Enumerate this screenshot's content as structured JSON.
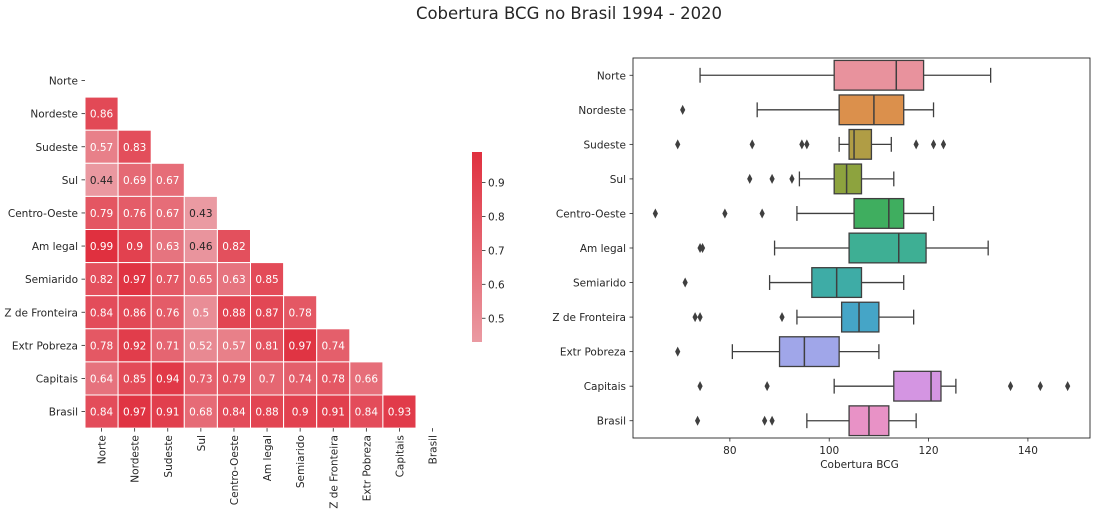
{
  "figure": {
    "title": "Cobertura BCG no Brasil 1994 - 2020"
  },
  "chart_data": [
    {
      "type": "heatmap",
      "title": "",
      "mask": "upper-triangle-including-diagonal",
      "categories": [
        "Norte",
        "Nordeste",
        "Sudeste",
        "Sul",
        "Centro-Oeste",
        "Am legal",
        "Semiarido",
        "Z de Fronteira",
        "Extr Pobreza",
        "Capitais",
        "Brasil"
      ],
      "values": [
        [],
        [
          0.86
        ],
        [
          0.57,
          0.83
        ],
        [
          0.44,
          0.69,
          0.67
        ],
        [
          0.79,
          0.76,
          0.67,
          0.43
        ],
        [
          0.99,
          0.9,
          0.63,
          0.46,
          0.82
        ],
        [
          0.82,
          0.97,
          0.77,
          0.65,
          0.63,
          0.85
        ],
        [
          0.84,
          0.86,
          0.76,
          0.5,
          0.88,
          0.87,
          0.78
        ],
        [
          0.78,
          0.92,
          0.71,
          0.52,
          0.57,
          0.81,
          0.97,
          0.74
        ],
        [
          0.64,
          0.85,
          0.94,
          0.73,
          0.79,
          0.7,
          0.74,
          0.78,
          0.66
        ],
        [
          0.84,
          0.97,
          0.91,
          0.68,
          0.84,
          0.88,
          0.9,
          0.91,
          0.84,
          0.93
        ]
      ],
      "colorbar": {
        "min": 0.43,
        "max": 0.99,
        "ticks": [
          "0.5",
          "0.6",
          "0.7",
          "0.8",
          "0.9"
        ],
        "color_low": "#ea9aa2",
        "color_high": "#e0303f"
      },
      "grid_color": "#ffffff",
      "text_dark_threshold": 0.5
    },
    {
      "type": "box",
      "orientation": "horizontal",
      "xlabel": "Cobertura BCG",
      "ylabel": "",
      "xlim": [
        60.5,
        152.5
      ],
      "xticks": [
        "80",
        "100",
        "120",
        "140"
      ],
      "grid": false,
      "categories": [
        "Norte",
        "Nordeste",
        "Sudeste",
        "Sul",
        "Centro-Oeste",
        "Am legal",
        "Semiarido",
        "Z de Fronteira",
        "Extr Pobreza",
        "Capitais",
        "Brasil"
      ],
      "boxes": [
        {
          "whisker_low": 74,
          "q1": 101,
          "median": 113.5,
          "q3": 119,
          "whisker_high": 132.5,
          "outliers": [],
          "color": "#e8929d"
        },
        {
          "whisker_low": 85.5,
          "q1": 102,
          "median": 109,
          "q3": 115,
          "whisker_high": 121,
          "outliers": [
            70.5
          ],
          "color": "#db904c"
        },
        {
          "whisker_low": 102,
          "q1": 104,
          "median": 105,
          "q3": 108.5,
          "whisker_high": 112.5,
          "outliers": [
            69.5,
            84.5,
            94.5,
            95.5,
            117.5,
            121,
            123
          ],
          "color": "#b09d45"
        },
        {
          "whisker_low": 94,
          "q1": 101,
          "median": 103.5,
          "q3": 106.5,
          "whisker_high": 113,
          "outliers": [
            84,
            88.5,
            92.5
          ],
          "color": "#8da33e"
        },
        {
          "whisker_low": 93.5,
          "q1": 105,
          "median": 112,
          "q3": 115,
          "whisker_high": 121,
          "outliers": [
            65,
            79,
            86.5
          ],
          "color": "#3fae5f"
        },
        {
          "whisker_low": 89,
          "q1": 104,
          "median": 114,
          "q3": 119.5,
          "whisker_high": 132,
          "outliers": [
            74,
            74.5
          ],
          "color": "#3eaf94"
        },
        {
          "whisker_low": 88,
          "q1": 96.5,
          "median": 101.5,
          "q3": 106.5,
          "whisker_high": 115,
          "outliers": [
            71
          ],
          "color": "#3eaca6"
        },
        {
          "whisker_low": 93.5,
          "q1": 102.5,
          "median": 106,
          "q3": 110,
          "whisker_high": 117,
          "outliers": [
            73,
            74,
            90.5
          ],
          "color": "#45a5c7"
        },
        {
          "whisker_low": 80.5,
          "q1": 90,
          "median": 95,
          "q3": 102,
          "whisker_high": 110,
          "outliers": [
            69.5
          ],
          "color": "#a0a6e9"
        },
        {
          "whisker_low": 101,
          "q1": 113,
          "median": 120.5,
          "q3": 122.5,
          "whisker_high": 125.5,
          "outliers": [
            74,
            87.5,
            136.5,
            142.5,
            148
          ],
          "color": "#d495e2"
        },
        {
          "whisker_low": 95.5,
          "q1": 104,
          "median": 108,
          "q3": 112,
          "whisker_high": 117.5,
          "outliers": [
            73.5,
            87,
            88.5
          ],
          "color": "#e892c6"
        }
      ]
    }
  ]
}
